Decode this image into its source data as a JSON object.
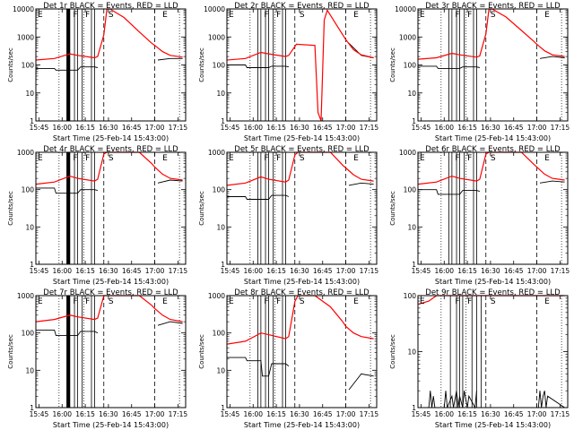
{
  "chart_data": [
    {
      "type": "line",
      "title": "Det 1r BLACK = Events, RED = LLD",
      "xlabel": "Start Time (25-Feb-14 15:43:00)",
      "ylabel": "Counts/sec",
      "y_scale": "log",
      "ylim": [
        1,
        10000
      ],
      "x_ticks": [
        "15:45",
        "16:00",
        "16:15",
        "16:30",
        "16:45",
        "17:00",
        "17:15"
      ],
      "y_ticks": [
        "1",
        "10",
        "100",
        "1000",
        "10000"
      ],
      "markers": [
        "F",
        "F",
        "S",
        "E"
      ],
      "series": [
        {
          "color": "#000000",
          "x": [
            "15:43",
            "15:55",
            "15:56",
            "16:10",
            "16:12",
            "16:21",
            "16:23",
            "16:30",
            "17:00",
            "17:02",
            "17:10",
            "17:18"
          ],
          "values": [
            75,
            75,
            65,
            65,
            85,
            85,
            80,
            null,
            null,
            150,
            170,
            170
          ]
        },
        {
          "color": "#ff0000",
          "x": [
            "15:43",
            "15:55",
            "16:05",
            "16:10",
            "16:21",
            "16:23",
            "16:27",
            "16:29",
            "16:31",
            "16:40",
            "16:50",
            "16:58",
            "17:00",
            "17:05",
            "17:10",
            "17:18"
          ],
          "values": [
            150,
            170,
            250,
            220,
            180,
            200,
            1200,
            10000,
            10000,
            5000,
            1500,
            600,
            500,
            300,
            220,
            190
          ]
        }
      ]
    },
    {
      "type": "line",
      "title": "Det 2r BLACK = Events, RED = LLD",
      "xlabel": "Start Time (25-Feb-14 15:43:00)",
      "ylabel": "Counts/sec",
      "y_scale": "log",
      "ylim": [
        1,
        10000
      ],
      "x_ticks": [
        "15:45",
        "16:00",
        "16:15",
        "16:30",
        "16:45",
        "17:00",
        "17:15"
      ],
      "y_ticks": [
        "1",
        "10",
        "100",
        "1000",
        "10000"
      ],
      "markers": [
        "F",
        "F",
        "S",
        "E"
      ],
      "series": [
        {
          "color": "#000000",
          "x": [
            "15:43",
            "15:55",
            "15:56",
            "16:10",
            "16:12",
            "16:21",
            "16:23",
            "16:30",
            "17:00",
            "17:02",
            "17:10",
            "17:18"
          ],
          "values": [
            100,
            100,
            80,
            80,
            90,
            90,
            85,
            null,
            null,
            600,
            220,
            180
          ]
        },
        {
          "color": "#ff0000",
          "x": [
            "15:43",
            "15:55",
            "16:05",
            "16:10",
            "16:21",
            "16:23",
            "16:28",
            "16:40",
            "16:42",
            "16:44",
            "16:46",
            "16:48",
            "17:00",
            "17:05",
            "17:10",
            "17:18"
          ],
          "values": [
            150,
            170,
            280,
            250,
            200,
            220,
            550,
            500,
            2,
            1,
            4000,
            9000,
            800,
            350,
            230,
            180
          ]
        }
      ]
    },
    {
      "type": "line",
      "title": "Det 3r BLACK = Events, RED = LLD",
      "xlabel": "Start Time (25-Feb-14 15:43:00)",
      "ylabel": "Counts/sec",
      "y_scale": "log",
      "ylim": [
        1,
        10000
      ],
      "x_ticks": [
        "15:45",
        "16:00",
        "16:15",
        "16:30",
        "16:45",
        "17:00",
        "17:15"
      ],
      "y_ticks": [
        "1",
        "10",
        "100",
        "1000",
        "10000"
      ],
      "markers": [
        "F",
        "F",
        "S",
        "E"
      ],
      "series": [
        {
          "color": "#000000",
          "x": [
            "15:43",
            "15:55",
            "15:56",
            "16:10",
            "16:12",
            "16:21",
            "16:23",
            "16:30",
            "17:00",
            "17:02",
            "17:10",
            "17:18"
          ],
          "values": [
            90,
            90,
            75,
            75,
            85,
            85,
            80,
            null,
            null,
            170,
            200,
            180
          ]
        },
        {
          "color": "#ff0000",
          "x": [
            "15:43",
            "15:55",
            "16:05",
            "16:10",
            "16:21",
            "16:23",
            "16:27",
            "16:29",
            "16:31",
            "16:40",
            "16:50",
            "16:58",
            "17:00",
            "17:05",
            "17:10",
            "17:18"
          ],
          "values": [
            160,
            180,
            260,
            230,
            190,
            210,
            1300,
            10000,
            10000,
            5200,
            1700,
            700,
            550,
            320,
            230,
            200
          ]
        }
      ]
    },
    {
      "type": "line",
      "title": "Det 4r BLACK = Events, RED = LLD",
      "xlabel": "Start Time (25-Feb-14 15:43:00)",
      "ylabel": "Counts/sec",
      "y_scale": "log",
      "ylim": [
        1,
        1000
      ],
      "x_ticks": [
        "15:45",
        "16:00",
        "16:15",
        "16:30",
        "16:45",
        "17:00",
        "17:15"
      ],
      "y_ticks": [
        "1",
        "10",
        "100",
        "1000"
      ],
      "markers": [
        "F",
        "F",
        "S",
        "E"
      ],
      "series": [
        {
          "color": "#000000",
          "x": [
            "15:43",
            "15:55",
            "15:56",
            "16:10",
            "16:12",
            "16:21",
            "16:23",
            "16:30",
            "17:00",
            "17:02",
            "17:10",
            "17:18"
          ],
          "values": [
            110,
            110,
            80,
            80,
            100,
            100,
            95,
            null,
            null,
            150,
            180,
            170
          ]
        },
        {
          "color": "#ff0000",
          "x": [
            "15:43",
            "15:55",
            "16:05",
            "16:10",
            "16:21",
            "16:23",
            "16:27",
            "16:29",
            "16:31",
            "16:40",
            "16:50",
            "16:58",
            "17:00",
            "17:05",
            "17:10",
            "17:18"
          ],
          "values": [
            140,
            160,
            230,
            200,
            170,
            190,
            900,
            1000,
            1000,
            1000,
            1000,
            500,
            400,
            260,
            200,
            180
          ]
        }
      ]
    },
    {
      "type": "line",
      "title": "Det 5r BLACK = Events, RED = LLD",
      "xlabel": "Start Time (25-Feb-14 15:43:00)",
      "ylabel": "Counts/sec",
      "y_scale": "log",
      "ylim": [
        1,
        1000
      ],
      "x_ticks": [
        "15:45",
        "16:00",
        "16:15",
        "16:30",
        "16:45",
        "17:00",
        "17:15"
      ],
      "y_ticks": [
        "1",
        "10",
        "100",
        "1000"
      ],
      "markers": [
        "F",
        "F",
        "S",
        "E"
      ],
      "series": [
        {
          "color": "#000000",
          "x": [
            "15:43",
            "15:55",
            "15:56",
            "16:10",
            "16:12",
            "16:21",
            "16:23",
            "16:30",
            "17:00",
            "17:02",
            "17:10",
            "17:18"
          ],
          "values": [
            65,
            65,
            55,
            55,
            70,
            70,
            65,
            null,
            null,
            130,
            150,
            140
          ]
        },
        {
          "color": "#ff0000",
          "x": [
            "15:43",
            "15:55",
            "16:05",
            "16:10",
            "16:21",
            "16:23",
            "16:27",
            "16:29",
            "16:31",
            "16:40",
            "16:50",
            "16:58",
            "17:00",
            "17:05",
            "17:10",
            "17:18"
          ],
          "values": [
            130,
            150,
            220,
            190,
            160,
            180,
            850,
            1000,
            1000,
            1000,
            1000,
            450,
            380,
            250,
            190,
            170
          ]
        }
      ]
    },
    {
      "type": "line",
      "title": "Det 6r BLACK = Events, RED = LLD",
      "xlabel": "Start Time (25-Feb-14 15:43:00)",
      "ylabel": "Counts/sec",
      "y_scale": "log",
      "ylim": [
        1,
        1000
      ],
      "x_ticks": [
        "15:45",
        "16:00",
        "16:15",
        "16:30",
        "16:45",
        "17:00",
        "17:15"
      ],
      "y_ticks": [
        "1",
        "10",
        "100",
        "1000"
      ],
      "markers": [
        "F",
        "F",
        "S",
        "E"
      ],
      "series": [
        {
          "color": "#000000",
          "x": [
            "15:43",
            "15:55",
            "15:56",
            "16:10",
            "16:12",
            "16:21",
            "16:23",
            "16:30",
            "17:00",
            "17:02",
            "17:10",
            "17:18"
          ],
          "values": [
            100,
            100,
            75,
            75,
            95,
            95,
            90,
            null,
            null,
            150,
            170,
            160
          ]
        },
        {
          "color": "#ff0000",
          "x": [
            "15:43",
            "15:55",
            "16:05",
            "16:10",
            "16:21",
            "16:23",
            "16:27",
            "16:29",
            "16:31",
            "16:40",
            "16:50",
            "16:58",
            "17:00",
            "17:05",
            "17:10",
            "17:18"
          ],
          "values": [
            140,
            160,
            230,
            200,
            170,
            190,
            900,
            1000,
            1000,
            1000,
            1000,
            480,
            400,
            260,
            200,
            180
          ]
        }
      ]
    },
    {
      "type": "line",
      "title": "Det 7r BLACK = Events, RED = LLD",
      "xlabel": "Start Time (25-Feb-14 15:43:00)",
      "ylabel": "Counts/sec",
      "y_scale": "log",
      "ylim": [
        1,
        1000
      ],
      "x_ticks": [
        "15:45",
        "16:00",
        "16:15",
        "16:30",
        "16:45",
        "17:00",
        "17:15"
      ],
      "y_ticks": [
        "1",
        "10",
        "100",
        "1000"
      ],
      "markers": [
        "F",
        "F",
        "S",
        "E"
      ],
      "series": [
        {
          "color": "#000000",
          "x": [
            "15:43",
            "15:55",
            "15:56",
            "16:10",
            "16:12",
            "16:21",
            "16:23",
            "16:30",
            "17:00",
            "17:02",
            "17:10",
            "17:18"
          ],
          "values": [
            120,
            120,
            85,
            85,
            110,
            110,
            100,
            null,
            null,
            160,
            200,
            180
          ]
        },
        {
          "color": "#ff0000",
          "x": [
            "15:43",
            "15:55",
            "16:05",
            "16:10",
            "16:21",
            "16:23",
            "16:27",
            "16:29",
            "16:31",
            "16:40",
            "16:50",
            "16:58",
            "17:00",
            "17:05",
            "17:10",
            "17:18"
          ],
          "values": [
            200,
            230,
            300,
            270,
            230,
            250,
            1000,
            1000,
            1000,
            1000,
            1000,
            550,
            450,
            300,
            230,
            200
          ]
        }
      ]
    },
    {
      "type": "line",
      "title": "Det 8r BLACK = Events, RED = LLD",
      "xlabel": "Start Time (25-Feb-14 15:43:00)",
      "ylabel": "Counts/sec",
      "y_scale": "log",
      "ylim": [
        1,
        1000
      ],
      "x_ticks": [
        "15:45",
        "16:00",
        "16:15",
        "16:30",
        "16:45",
        "17:00",
        "17:15"
      ],
      "y_ticks": [
        "1",
        "10",
        "100",
        "1000"
      ],
      "markers": [
        "F",
        "F",
        "S",
        "E"
      ],
      "series": [
        {
          "color": "#000000",
          "x": [
            "15:43",
            "15:55",
            "15:56",
            "16:05",
            "16:06",
            "16:10",
            "16:12",
            "16:21",
            "16:23",
            "16:30",
            "17:00",
            "17:02",
            "17:10",
            "17:18"
          ],
          "values": [
            22,
            22,
            18,
            18,
            7,
            7,
            15,
            15,
            13,
            null,
            null,
            3,
            8,
            7
          ]
        },
        {
          "color": "#ff0000",
          "x": [
            "15:43",
            "15:55",
            "16:05",
            "16:10",
            "16:21",
            "16:23",
            "16:27",
            "16:29",
            "16:31",
            "16:40",
            "16:50",
            "16:58",
            "17:00",
            "17:05",
            "17:10",
            "17:18"
          ],
          "values": [
            50,
            60,
            100,
            90,
            70,
            80,
            700,
            1000,
            1000,
            1000,
            500,
            200,
            150,
            100,
            80,
            70
          ]
        }
      ]
    },
    {
      "type": "line",
      "title": "Det 9r BLACK = Events, RED = LLD",
      "xlabel": "Start Time (25-Feb-14 15:43:00)",
      "ylabel": "Counts/sec",
      "y_scale": "log",
      "ylim": [
        1,
        100
      ],
      "x_ticks": [
        "15:45",
        "16:00",
        "16:15",
        "16:30",
        "16:45",
        "17:00",
        "17:15"
      ],
      "y_ticks": [
        "1",
        "10",
        "100"
      ],
      "markers": [
        "F",
        "F",
        "S",
        "E"
      ],
      "series": [
        {
          "color": "#000000",
          "x": [
            "15:43",
            "15:50",
            "15:51",
            "15:52",
            "15:53",
            "15:54",
            "15:55",
            "16:00",
            "16:01",
            "16:02",
            "16:05",
            "16:06",
            "16:08",
            "16:09",
            "16:10",
            "16:12",
            "16:13",
            "16:15",
            "16:16",
            "16:20",
            "16:21",
            "16:30",
            "17:00",
            "17:01",
            "17:02",
            "17:03",
            "17:04",
            "17:05",
            "17:06",
            "17:07",
            "17:18"
          ],
          "values": [
            1,
            1,
            2,
            1,
            1.6,
            1,
            1,
            1,
            2,
            1,
            1.6,
            1,
            2,
            1,
            1.6,
            1,
            2,
            1,
            1.6,
            1,
            2,
            null,
            null,
            1,
            2,
            1,
            1.6,
            2,
            1,
            1.6,
            1
          ]
        },
        {
          "color": "#ff0000",
          "x": [
            "15:43",
            "15:50",
            "15:55",
            "16:00",
            "16:05",
            "16:10",
            "16:15",
            "16:20",
            "16:25",
            "16:28",
            "16:30",
            "16:40",
            "16:50",
            "17:00",
            "17:05",
            "17:10",
            "17:18"
          ],
          "values": [
            70,
            80,
            100,
            100,
            100,
            100,
            100,
            100,
            100,
            100,
            100,
            100,
            100,
            100,
            100,
            100,
            100
          ]
        }
      ]
    }
  ]
}
